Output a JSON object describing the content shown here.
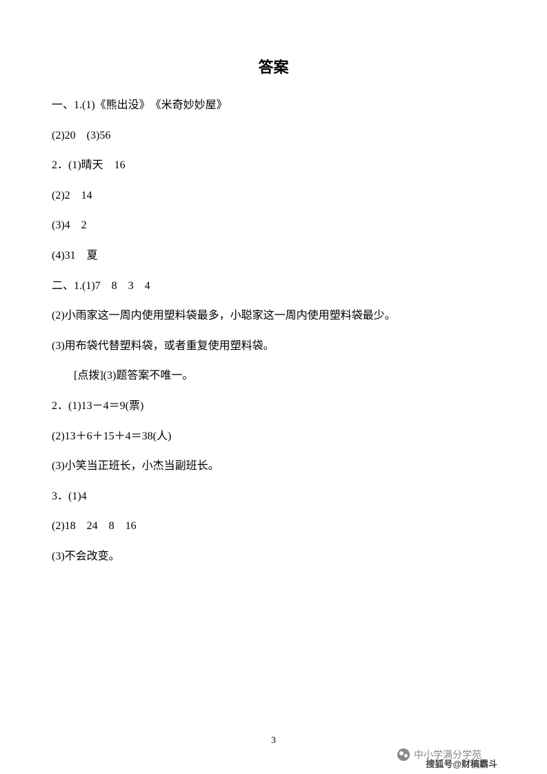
{
  "title": "答案",
  "lines": [
    "一、1.(1)《熊出没》　《米奇妙妙屋》",
    "(2)20　(3)56",
    "2．(1)晴天　16",
    "(2)2　14",
    "(3)4　2",
    "(4)31　夏",
    "二、1.(1)7　8　3　4",
    "(2)小雨家这一周内使用塑料袋最多，小聪家这一周内使用塑料袋最少。",
    "(3)用布袋代替塑料袋，或者重复使用塑料袋。",
    "　　[点拨](3)题答案不唯一。",
    "2．(1)13－4＝9(票)",
    "(2)13＋6＋15＋4＝38(人)",
    "(3)小笑当正班长，小杰当副班长。",
    "3．(1)4",
    "(2)18　24　8　16",
    "(3)不会改变。"
  ],
  "page_number": "3",
  "watermark_main": "中小学满分学苑",
  "watermark_sohu": "搜狐号@财稿霸斗"
}
